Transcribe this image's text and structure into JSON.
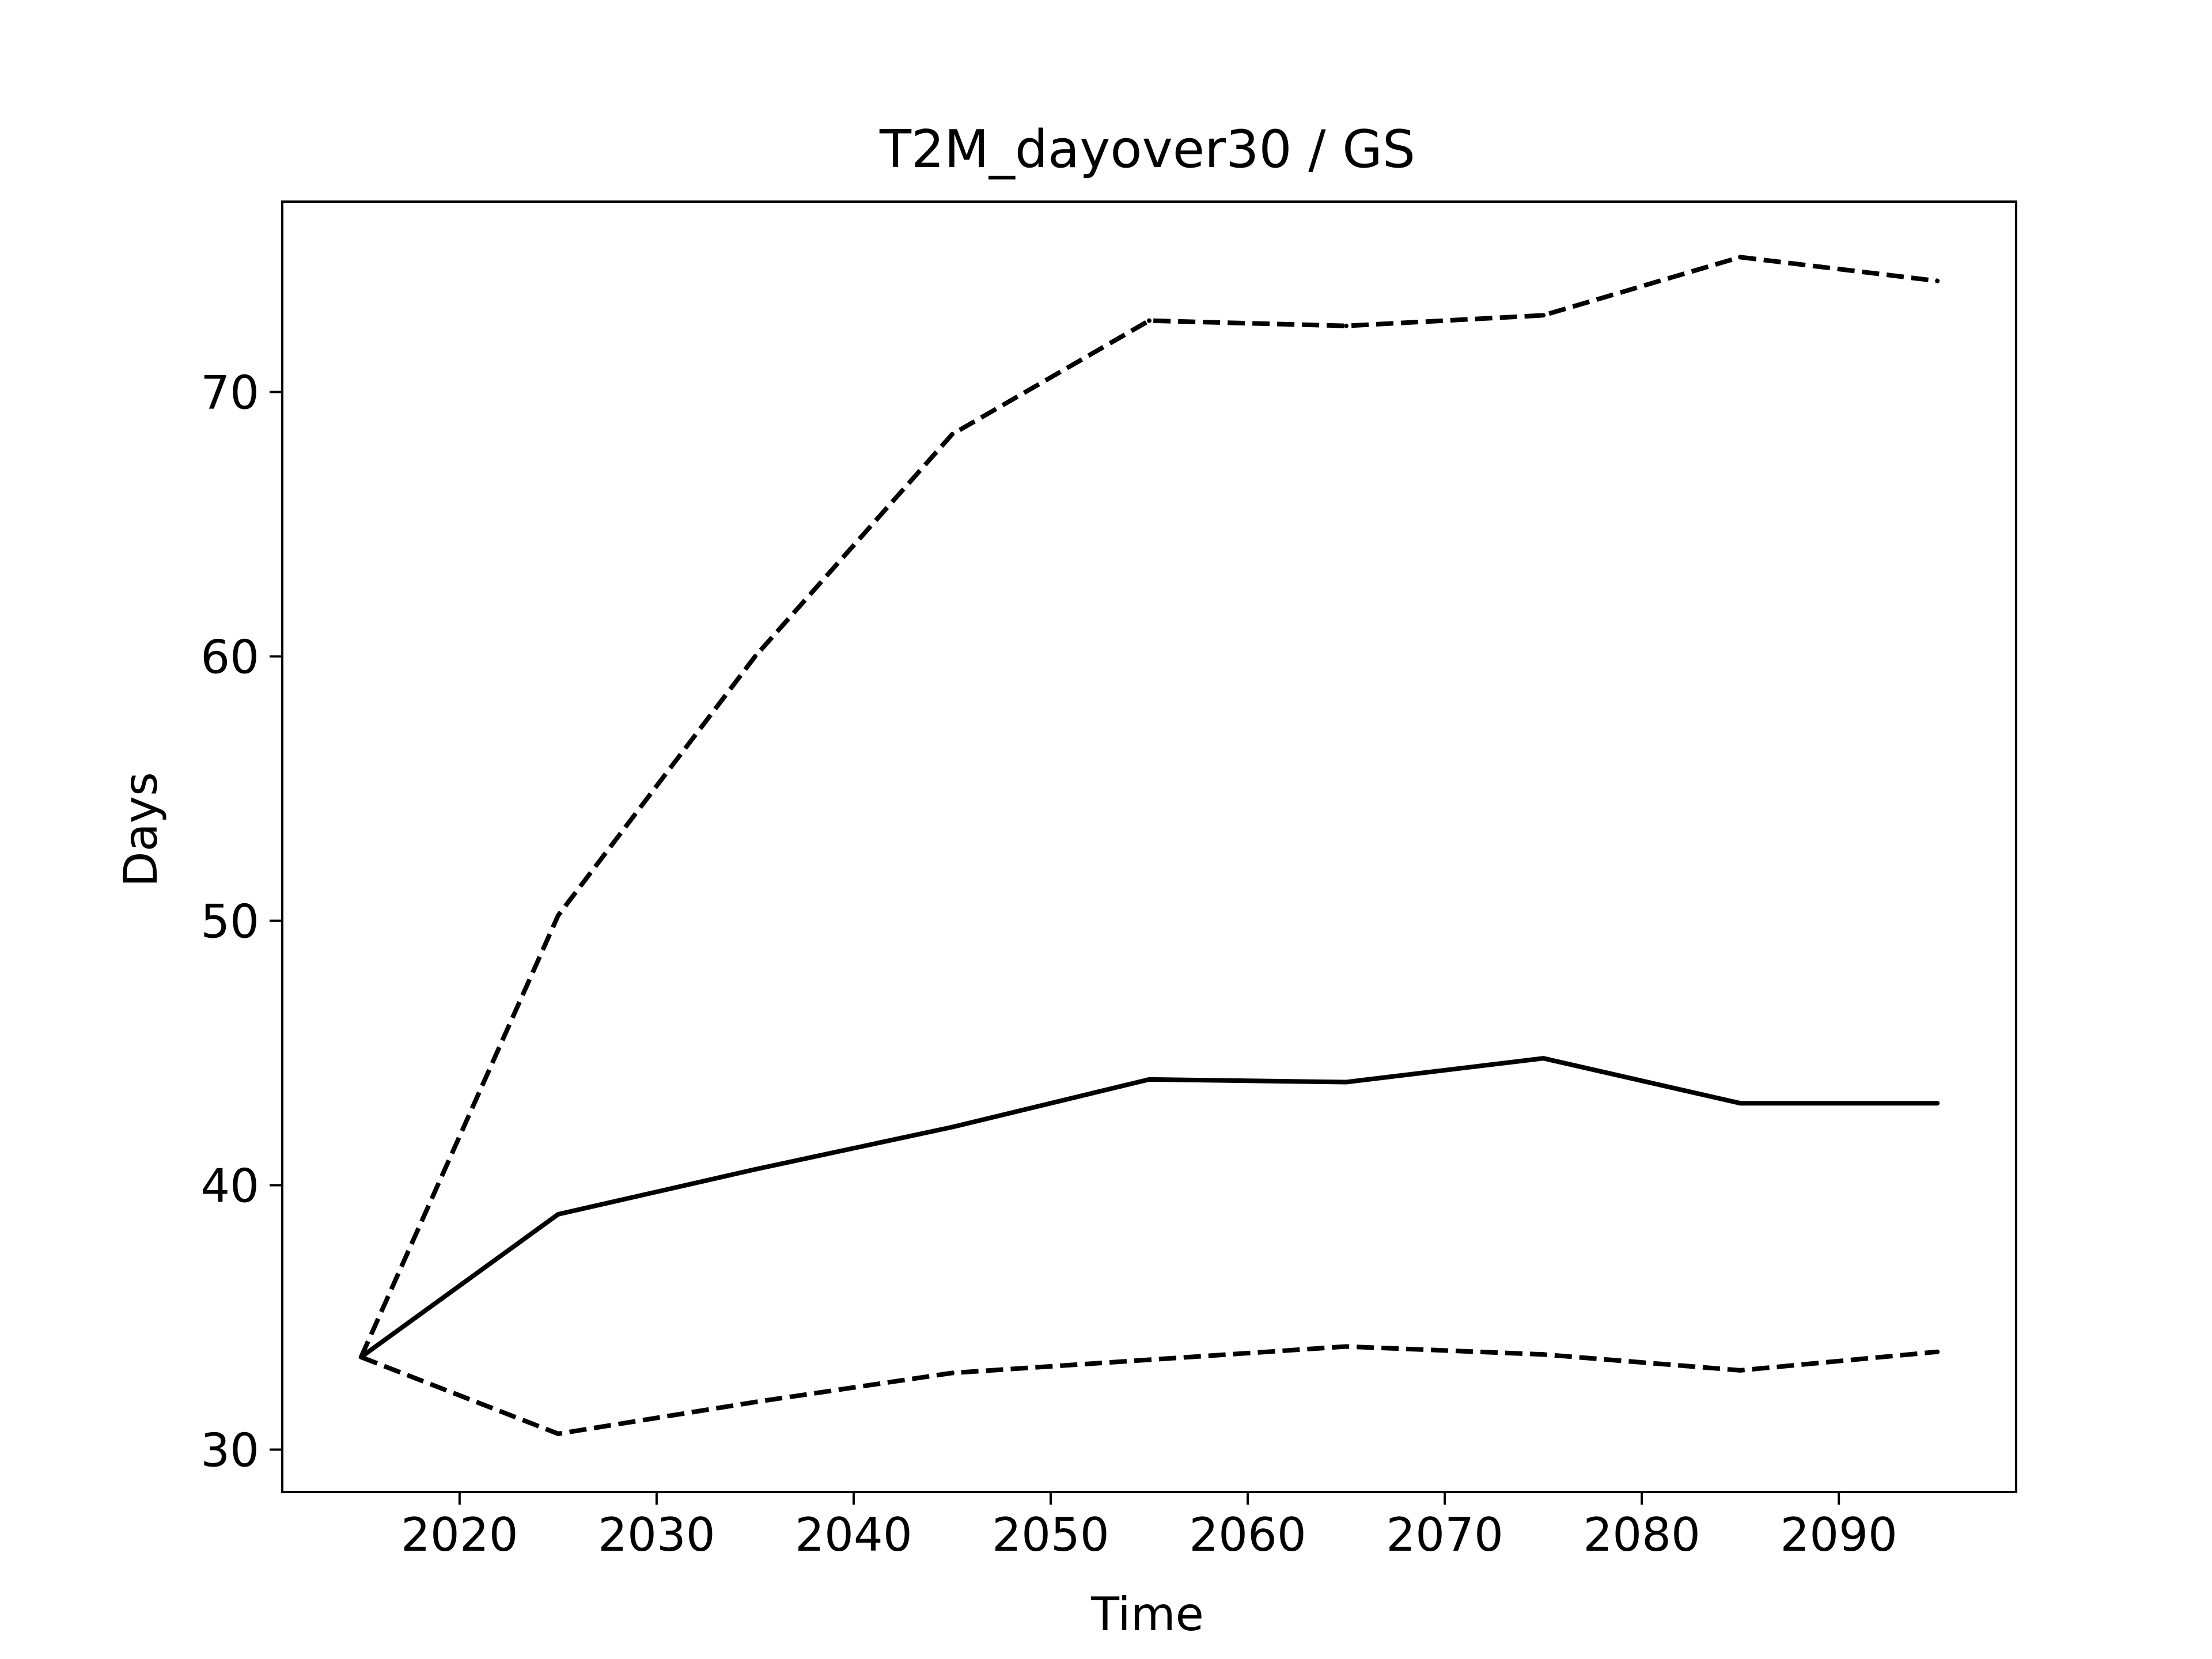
{
  "chart_data": {
    "type": "line",
    "title": "T2M_dayover30 / GS",
    "xlabel": "Time",
    "ylabel": "Days",
    "xlim": [
      2011,
      2099
    ],
    "ylim": [
      28.4,
      77.2
    ],
    "xticks": [
      2020,
      2030,
      2040,
      2050,
      2060,
      2070,
      2080,
      2090
    ],
    "yticks": [
      30,
      40,
      50,
      60,
      70
    ],
    "grid": false,
    "legend": "none",
    "line_color": "#000000",
    "x": [
      2015,
      2025,
      2035,
      2045,
      2055,
      2065,
      2075,
      2085,
      2095
    ],
    "series": [
      {
        "style": "dashed",
        "values": [
          33.5,
          50.2,
          60.0,
          68.4,
          72.7,
          72.5,
          72.9,
          75.1,
          74.2
        ]
      },
      {
        "style": "solid",
        "values": [
          33.5,
          38.9,
          40.6,
          42.2,
          44.0,
          43.9,
          44.8,
          43.1,
          43.1
        ]
      },
      {
        "style": "dashed",
        "values": [
          33.5,
          30.6,
          31.8,
          32.9,
          33.4,
          33.9,
          33.6,
          33.0,
          33.7
        ]
      }
    ]
  }
}
